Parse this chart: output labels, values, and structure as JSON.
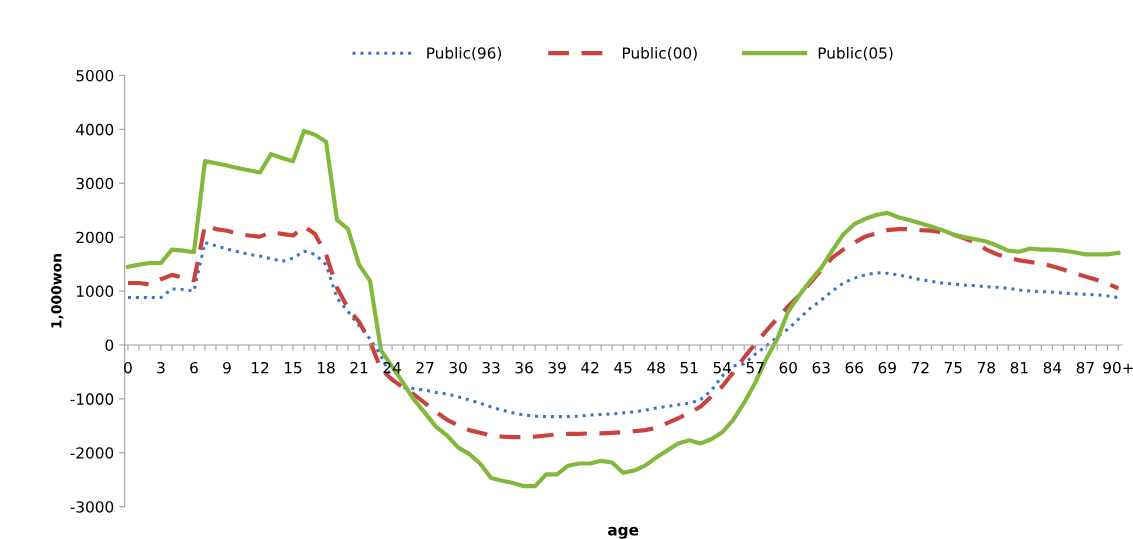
{
  "chart_data": {
    "type": "line",
    "xlabel": "age",
    "ylabel": "1,000won",
    "categories": [
      "0",
      null,
      null,
      "3",
      null,
      null,
      "6",
      null,
      null,
      "9",
      null,
      null,
      "12",
      null,
      null,
      "15",
      null,
      null,
      "18",
      null,
      null,
      "21",
      null,
      null,
      "24",
      null,
      null,
      "27",
      null,
      null,
      "30",
      null,
      null,
      "33",
      null,
      null,
      "36",
      null,
      null,
      "39",
      null,
      null,
      "42",
      null,
      null,
      "45",
      null,
      null,
      "48",
      null,
      null,
      "51",
      null,
      null,
      "54",
      null,
      null,
      "57",
      null,
      null,
      "60",
      null,
      null,
      "63",
      null,
      null,
      "66",
      null,
      null,
      "69",
      null,
      null,
      "72",
      null,
      null,
      "75",
      null,
      null,
      "78",
      null,
      null,
      "81",
      null,
      null,
      "84",
      null,
      null,
      "87",
      null,
      null,
      "90+"
    ],
    "series": [
      {
        "name": "Public(96)",
        "color": "#3b78c4",
        "line_style": "dotted",
        "values": [
          880,
          880,
          880,
          880,
          1040,
          1030,
          1000,
          1900,
          1840,
          1780,
          1730,
          1680,
          1650,
          1600,
          1550,
          1610,
          1740,
          1680,
          1490,
          870,
          620,
          360,
          110,
          -200,
          -640,
          -790,
          -810,
          -840,
          -880,
          -910,
          -960,
          -1020,
          -1080,
          -1150,
          -1210,
          -1260,
          -1300,
          -1320,
          -1330,
          -1330,
          -1330,
          -1320,
          -1300,
          -1290,
          -1280,
          -1260,
          -1240,
          -1210,
          -1170,
          -1140,
          -1110,
          -1080,
          -1020,
          -850,
          -580,
          -390,
          -350,
          -170,
          -20,
          150,
          300,
          490,
          680,
          830,
          1000,
          1150,
          1240,
          1300,
          1340,
          1330,
          1300,
          1260,
          1210,
          1180,
          1150,
          1130,
          1110,
          1100,
          1080,
          1070,
          1050,
          1020,
          1000,
          990,
          980,
          960,
          950,
          940,
          930,
          910,
          880
        ]
      },
      {
        "name": "Public(00)",
        "color": "#c8433f",
        "line_style": "dashed",
        "values": [
          1150,
          1150,
          1120,
          1220,
          1300,
          1250,
          1200,
          2220,
          2150,
          2120,
          2060,
          2030,
          2010,
          2090,
          2060,
          2030,
          2200,
          2060,
          1680,
          1060,
          680,
          430,
          60,
          -450,
          -640,
          -790,
          -920,
          -1080,
          -1240,
          -1390,
          -1490,
          -1580,
          -1630,
          -1680,
          -1700,
          -1710,
          -1710,
          -1700,
          -1680,
          -1660,
          -1650,
          -1650,
          -1640,
          -1640,
          -1630,
          -1620,
          -1600,
          -1580,
          -1540,
          -1450,
          -1360,
          -1260,
          -1150,
          -960,
          -770,
          -510,
          -230,
          20,
          260,
          490,
          720,
          920,
          1150,
          1390,
          1620,
          1770,
          1900,
          2010,
          2070,
          2130,
          2150,
          2150,
          2130,
          2120,
          2090,
          2050,
          1980,
          1900,
          1770,
          1680,
          1620,
          1570,
          1540,
          1510,
          1460,
          1400,
          1330,
          1270,
          1210,
          1140,
          1050
        ]
      },
      {
        "name": "Public(05)",
        "color": "#82b83c",
        "line_style": "solid",
        "values": [
          1450,
          1490,
          1520,
          1520,
          1770,
          1750,
          1720,
          3410,
          3370,
          3330,
          3280,
          3240,
          3200,
          3540,
          3470,
          3410,
          3970,
          3900,
          3770,
          2320,
          2150,
          1490,
          1190,
          -100,
          -400,
          -700,
          -1020,
          -1260,
          -1520,
          -1680,
          -1900,
          -2020,
          -2200,
          -2470,
          -2520,
          -2560,
          -2620,
          -2620,
          -2400,
          -2400,
          -2240,
          -2200,
          -2200,
          -2150,
          -2180,
          -2370,
          -2330,
          -2240,
          -2090,
          -1960,
          -1830,
          -1770,
          -1830,
          -1750,
          -1620,
          -1390,
          -1070,
          -700,
          -260,
          110,
          620,
          920,
          1190,
          1430,
          1750,
          2050,
          2240,
          2340,
          2410,
          2450,
          2370,
          2320,
          2260,
          2200,
          2130,
          2050,
          2000,
          1960,
          1920,
          1840,
          1750,
          1730,
          1790,
          1770,
          1770,
          1750,
          1720,
          1680,
          1680,
          1680,
          1710
        ]
      }
    ],
    "ylim": [
      -3000,
      5000
    ],
    "yticks": [
      -3000,
      -2000,
      -1000,
      0,
      1000,
      2000,
      3000,
      4000,
      5000
    ],
    "legend": "top",
    "marker": "none",
    "grid": false
  }
}
